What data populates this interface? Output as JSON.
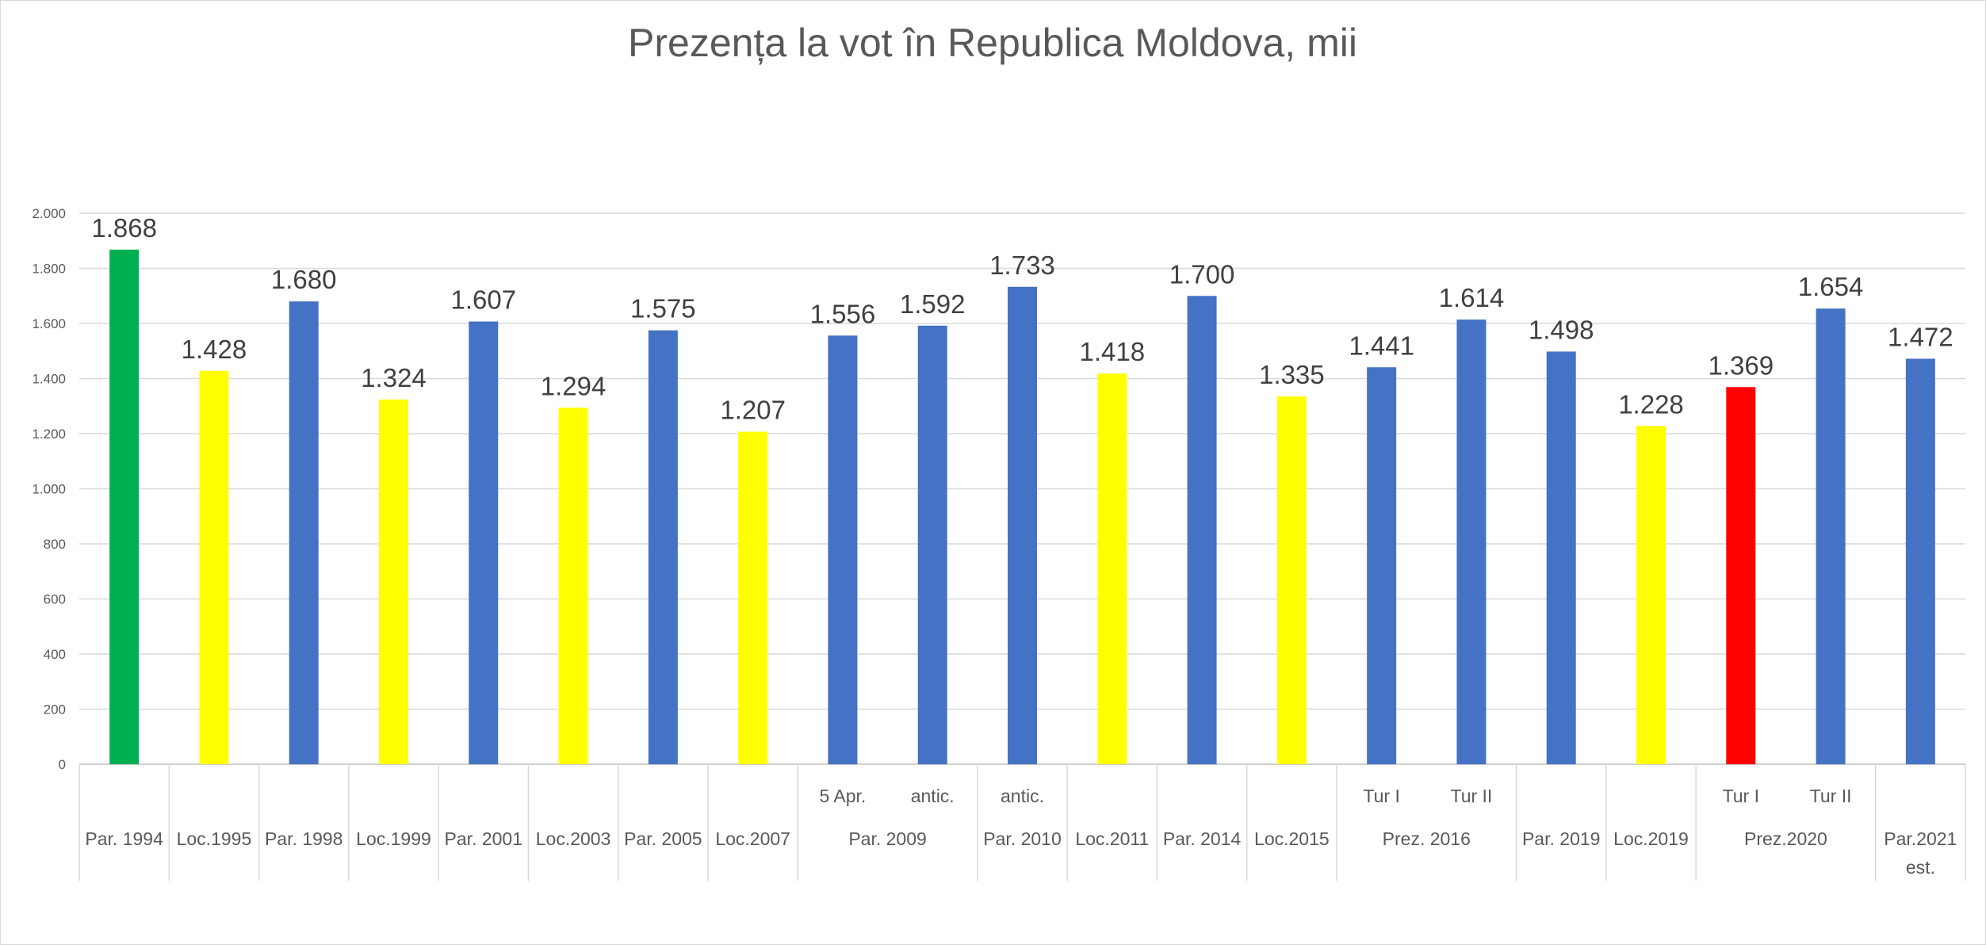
{
  "chart_data": {
    "type": "bar",
    "title": "Prezența la vot în Republica Moldova, mii",
    "xlabel": "",
    "ylabel": "",
    "ylim": [
      0,
      2000
    ],
    "yticks": [
      0,
      200,
      400,
      600,
      800,
      1000,
      1200,
      1400,
      1600,
      1800,
      2000
    ],
    "ytick_labels": [
      "0",
      "200",
      "400",
      "600",
      "800",
      "1.000",
      "1.200",
      "1.400",
      "1.600",
      "1.800",
      "2.000"
    ],
    "grid": true,
    "legend": "none",
    "colors": {
      "green": "#00b050",
      "yellow": "#ffff00",
      "blue": "#4472c4",
      "red": "#ff0000"
    },
    "bars": [
      {
        "value": 1868,
        "label": "1.868",
        "color": "green",
        "sub": ""
      },
      {
        "value": 1428,
        "label": "1.428",
        "color": "yellow",
        "sub": ""
      },
      {
        "value": 1680,
        "label": "1.680",
        "color": "blue",
        "sub": ""
      },
      {
        "value": 1324,
        "label": "1.324",
        "color": "yellow",
        "sub": ""
      },
      {
        "value": 1607,
        "label": "1.607",
        "color": "blue",
        "sub": ""
      },
      {
        "value": 1294,
        "label": "1.294",
        "color": "yellow",
        "sub": ""
      },
      {
        "value": 1575,
        "label": "1.575",
        "color": "blue",
        "sub": ""
      },
      {
        "value": 1207,
        "label": "1.207",
        "color": "yellow",
        "sub": ""
      },
      {
        "value": 1556,
        "label": "1.556",
        "color": "blue",
        "sub": "5 Apr."
      },
      {
        "value": 1592,
        "label": "1.592",
        "color": "blue",
        "sub": "antic."
      },
      {
        "value": 1733,
        "label": "1.733",
        "color": "blue",
        "sub": "antic."
      },
      {
        "value": 1418,
        "label": "1.418",
        "color": "yellow",
        "sub": ""
      },
      {
        "value": 1700,
        "label": "1.700",
        "color": "blue",
        "sub": ""
      },
      {
        "value": 1335,
        "label": "1.335",
        "color": "yellow",
        "sub": ""
      },
      {
        "value": 1441,
        "label": "1.441",
        "color": "blue",
        "sub": "Tur I"
      },
      {
        "value": 1614,
        "label": "1.614",
        "color": "blue",
        "sub": "Tur II"
      },
      {
        "value": 1498,
        "label": "1.498",
        "color": "blue",
        "sub": ""
      },
      {
        "value": 1228,
        "label": "1.228",
        "color": "yellow",
        "sub": ""
      },
      {
        "value": 1369,
        "label": "1.369",
        "color": "red",
        "sub": "Tur I"
      },
      {
        "value": 1654,
        "label": "1.654",
        "color": "blue",
        "sub": "Tur II"
      },
      {
        "value": 1472,
        "label": "1.472",
        "color": "blue",
        "sub": ""
      }
    ],
    "groups": [
      {
        "label": [
          "Par. 1994"
        ],
        "span": 1
      },
      {
        "label": [
          "Loc.1995"
        ],
        "span": 1
      },
      {
        "label": [
          "Par. 1998"
        ],
        "span": 1
      },
      {
        "label": [
          "Loc.1999"
        ],
        "span": 1
      },
      {
        "label": [
          "Par. 2001"
        ],
        "span": 1
      },
      {
        "label": [
          "Loc.2003"
        ],
        "span": 1
      },
      {
        "label": [
          "Par. 2005"
        ],
        "span": 1
      },
      {
        "label": [
          "Loc.2007"
        ],
        "span": 1
      },
      {
        "label": [
          "Par. 2009"
        ],
        "span": 2
      },
      {
        "label": [
          "Par. 2010"
        ],
        "span": 1
      },
      {
        "label": [
          "Loc.2011"
        ],
        "span": 1
      },
      {
        "label": [
          "Par. 2014"
        ],
        "span": 1
      },
      {
        "label": [
          "Loc.2015"
        ],
        "span": 1
      },
      {
        "label": [
          "Prez. 2016"
        ],
        "span": 2
      },
      {
        "label": [
          "Par. 2019"
        ],
        "span": 1
      },
      {
        "label": [
          "Loc.2019"
        ],
        "span": 1
      },
      {
        "label": [
          "Prez.2020"
        ],
        "span": 2
      },
      {
        "label": [
          "Par.2021",
          "est."
        ],
        "span": 1
      }
    ]
  }
}
